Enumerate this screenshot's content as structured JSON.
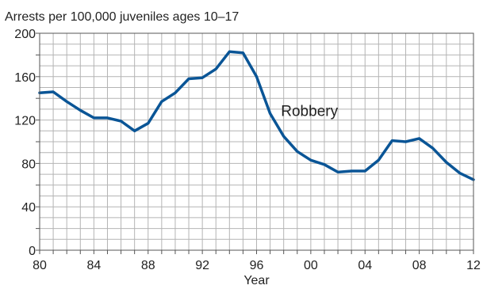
{
  "chart_data": {
    "type": "line",
    "ylabel": "Arrests per 100,000 juveniles ages 10–17",
    "xlabel": "Year",
    "xlim": [
      1980,
      2012
    ],
    "ylim": [
      0,
      200
    ],
    "grid": true,
    "x_ticks": [
      1980,
      1984,
      1988,
      1992,
      1996,
      2000,
      2004,
      2008,
      2012
    ],
    "x_tick_labels": [
      "80",
      "84",
      "88",
      "92",
      "96",
      "00",
      "04",
      "08",
      "12"
    ],
    "y_ticks": [
      0,
      40,
      80,
      120,
      160,
      200
    ],
    "y_tick_labels": [
      "0",
      "40",
      "80",
      "120",
      "160",
      "200"
    ],
    "series": [
      {
        "name": "Robbery",
        "x": [
          1980,
          1981,
          1982,
          1983,
          1984,
          1985,
          1986,
          1987,
          1988,
          1989,
          1990,
          1991,
          1992,
          1993,
          1994,
          1995,
          1996,
          1997,
          1998,
          1999,
          2000,
          2001,
          2002,
          2003,
          2004,
          2005,
          2006,
          2007,
          2008,
          2009,
          2010,
          2011,
          2012
        ],
        "values": [
          145,
          146,
          137,
          129,
          122,
          122,
          119,
          110,
          117,
          137,
          145,
          158,
          159,
          167,
          183,
          182,
          160,
          126,
          105,
          91,
          83,
          79,
          72,
          73,
          73,
          83,
          101,
          100,
          103,
          94,
          81,
          71,
          65
        ]
      }
    ],
    "annotations": [
      {
        "text": "Robbery",
        "x": 1997.8,
        "y": 129
      }
    ],
    "colors": {
      "line": "#0a5596",
      "grid": "#b4b4b4",
      "axis": "#555555"
    }
  }
}
